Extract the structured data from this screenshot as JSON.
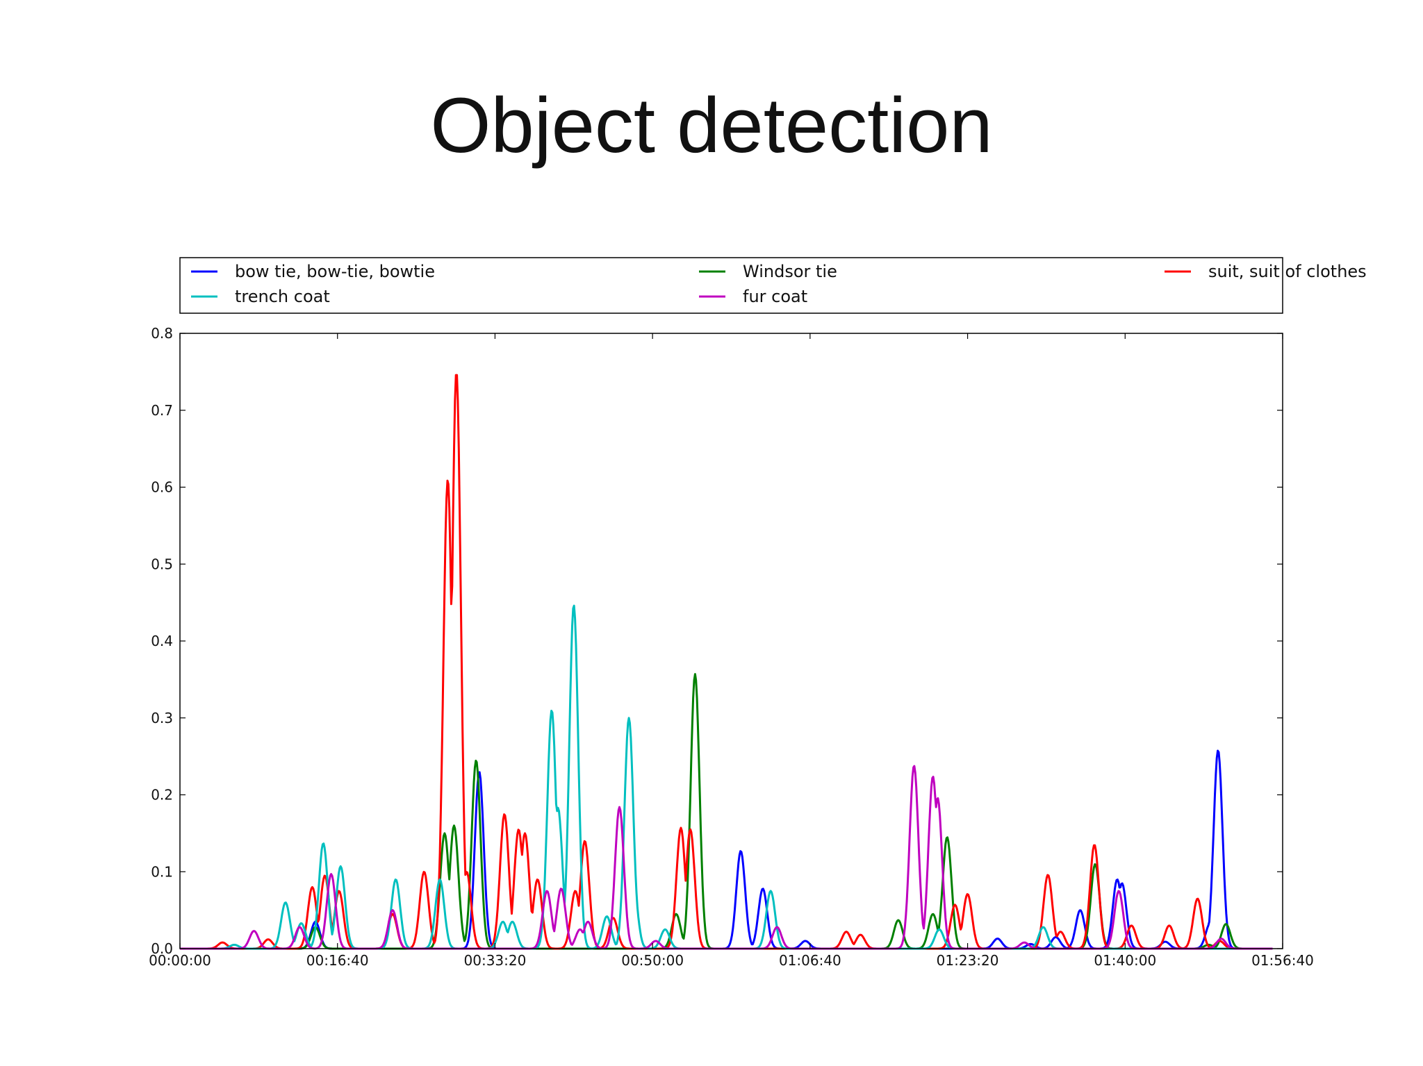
{
  "slide": {
    "title": "Object detection"
  },
  "chart_data": {
    "type": "line",
    "title": "",
    "xlabel": "",
    "ylabel": "",
    "x_unit": "time (h:mm:ss)",
    "xlim": [
      "00:00:00",
      "01:56:40"
    ],
    "ylim": [
      0,
      0.8
    ],
    "xticks": [
      "00:00:00",
      "00:16:40",
      "00:33:20",
      "00:50:00",
      "01:06:40",
      "01:23:20",
      "01:40:00",
      "01:56:40"
    ],
    "yticks": [
      "0.0",
      "0.1",
      "0.2",
      "0.3",
      "0.4",
      "0.5",
      "0.6",
      "0.7",
      "0.8"
    ],
    "grid": false,
    "legend": {
      "placement": "top, above plot",
      "columns": 3
    },
    "series": [
      {
        "name": "bow tie, bow-tie, bowtie",
        "color": "#0000ff",
        "peaks": [
          [
            "00:14:20",
            0.035
          ],
          [
            "00:31:40",
            0.23
          ],
          [
            "00:59:20",
            0.127
          ],
          [
            "01:01:40",
            0.078
          ],
          [
            "01:06:10",
            0.01
          ],
          [
            "01:26:30",
            0.013
          ],
          [
            "01:30:00",
            0.006
          ],
          [
            "01:32:40",
            0.015
          ],
          [
            "01:35:15",
            0.05
          ],
          [
            "01:39:10",
            0.09
          ],
          [
            "01:39:40",
            0.085
          ],
          [
            "01:44:15",
            0.009
          ],
          [
            "01:49:00",
            0.033
          ],
          [
            "01:49:50",
            0.258
          ]
        ]
      },
      {
        "name": "Windsor tie",
        "color": "#008000",
        "peaks": [
          [
            "00:14:20",
            0.028
          ],
          [
            "00:28:00",
            0.15
          ],
          [
            "00:29:00",
            0.16
          ],
          [
            "00:31:20",
            0.245
          ],
          [
            "00:52:30",
            0.045
          ],
          [
            "00:54:30",
            0.357
          ],
          [
            "01:16:00",
            0.037
          ],
          [
            "01:19:40",
            0.045
          ],
          [
            "01:21:10",
            0.145
          ],
          [
            "01:36:50",
            0.11
          ],
          [
            "01:48:50",
            0.005
          ],
          [
            "01:50:40",
            0.032
          ]
        ]
      },
      {
        "name": "suit, suit of clothes",
        "color": "#ff0000",
        "peaks": [
          [
            "00:04:30",
            0.008
          ],
          [
            "00:09:20",
            0.012
          ],
          [
            "00:14:00",
            0.08
          ],
          [
            "00:15:20",
            0.095
          ],
          [
            "00:16:50",
            0.075
          ],
          [
            "00:22:30",
            0.045
          ],
          [
            "00:25:50",
            0.1
          ],
          [
            "00:28:20",
            0.61
          ],
          [
            "00:29:15",
            0.75
          ],
          [
            "00:30:20",
            0.1
          ],
          [
            "00:34:20",
            0.175
          ],
          [
            "00:35:50",
            0.155
          ],
          [
            "00:36:30",
            0.15
          ],
          [
            "00:37:50",
            0.09
          ],
          [
            "00:41:50",
            0.075
          ],
          [
            "00:42:50",
            0.14
          ],
          [
            "00:45:50",
            0.04
          ],
          [
            "00:53:00",
            0.157
          ],
          [
            "00:54:00",
            0.155
          ],
          [
            "01:10:30",
            0.022
          ],
          [
            "01:12:00",
            0.018
          ],
          [
            "01:22:00",
            0.057
          ],
          [
            "01:23:20",
            0.071
          ],
          [
            "01:31:50",
            0.096
          ],
          [
            "01:33:10",
            0.022
          ],
          [
            "01:36:45",
            0.135
          ],
          [
            "01:40:40",
            0.03
          ],
          [
            "01:44:40",
            0.03
          ],
          [
            "01:47:40",
            0.065
          ],
          [
            "01:50:00",
            0.01
          ]
        ]
      },
      {
        "name": "trench coat",
        "color": "#00bfbf",
        "peaks": [
          [
            "00:05:45",
            0.005
          ],
          [
            "00:11:10",
            0.06
          ],
          [
            "00:12:50",
            0.033
          ],
          [
            "00:15:10",
            0.137
          ],
          [
            "00:17:00",
            0.107
          ],
          [
            "00:22:50",
            0.09
          ],
          [
            "00:27:30",
            0.09
          ],
          [
            "00:34:10",
            0.035
          ],
          [
            "00:35:10",
            0.035
          ],
          [
            "00:39:20",
            0.31
          ],
          [
            "00:40:00",
            0.183
          ],
          [
            "00:41:40",
            0.447
          ],
          [
            "00:45:10",
            0.042
          ],
          [
            "00:47:40",
            0.184
          ],
          [
            "00:47:55",
            0.09
          ],
          [
            "00:47:30",
            0.3
          ],
          [
            "00:51:20",
            0.025
          ],
          [
            "01:02:30",
            0.075
          ],
          [
            "01:20:20",
            0.025
          ],
          [
            "01:31:20",
            0.028
          ]
        ]
      },
      {
        "name": "fur coat",
        "color": "#bf00bf",
        "peaks": [
          [
            "00:07:50",
            0.023
          ],
          [
            "00:12:40",
            0.028
          ],
          [
            "00:16:00",
            0.097
          ],
          [
            "00:22:30",
            0.05
          ],
          [
            "00:38:50",
            0.075
          ],
          [
            "00:40:20",
            0.078
          ],
          [
            "00:42:20",
            0.025
          ],
          [
            "00:43:10",
            0.035
          ],
          [
            "00:46:30",
            0.184
          ],
          [
            "00:50:20",
            0.01
          ],
          [
            "01:03:10",
            0.028
          ],
          [
            "01:17:40",
            0.238
          ],
          [
            "01:19:40",
            0.224
          ],
          [
            "01:20:10",
            0.196
          ],
          [
            "01:29:20",
            0.008
          ],
          [
            "01:39:20",
            0.075
          ],
          [
            "01:50:10",
            0.013
          ]
        ]
      }
    ]
  }
}
